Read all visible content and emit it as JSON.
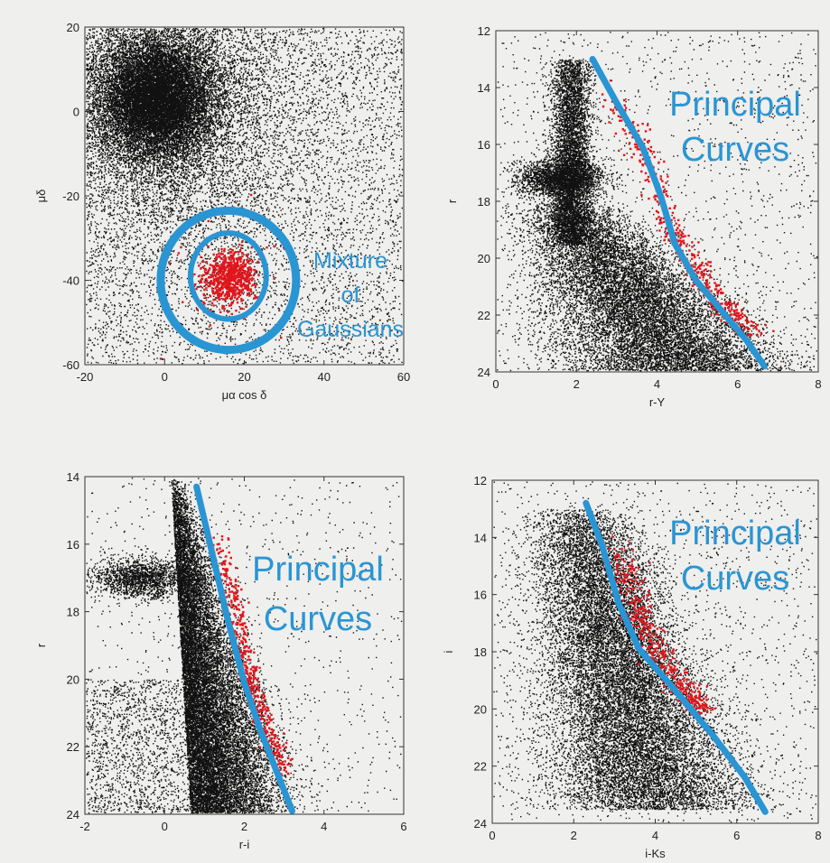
{
  "colors": {
    "background": "#efefed",
    "stars": "#111111",
    "members": "#e0161c",
    "annotation": "#2a95d3"
  },
  "chart_data": [
    {
      "type": "scatter",
      "id": "proper-motion",
      "xlabel": "μα cos δ",
      "ylabel": "μδ",
      "xlim": [
        -20,
        60
      ],
      "ylim": [
        -60,
        20
      ],
      "xticks": [
        "-20",
        "0",
        "20",
        "40",
        "60"
      ],
      "yticks": [
        "20",
        "0",
        "-20",
        "-40",
        "-60"
      ],
      "y_inverted": false,
      "grid": false,
      "field_population": {
        "center": [
          -2,
          3
        ],
        "spread": [
          7,
          7
        ]
      },
      "member_population": {
        "center": [
          16,
          -39
        ],
        "spread": [
          3.2,
          3.2
        ]
      },
      "annotation": {
        "lines": [
          "Mixture",
          "of",
          "Gaussians"
        ]
      },
      "ellipses": [
        {
          "center": [
            16,
            -39
          ],
          "radius": [
            9.5,
            10.2
          ]
        },
        {
          "center": [
            16,
            -40
          ],
          "radius": [
            17,
            16.5
          ]
        }
      ]
    },
    {
      "type": "scatter",
      "id": "cmd-r-Y",
      "xlabel": "r-Y",
      "ylabel": "r",
      "xlim": [
        -1,
        8
      ],
      "ylim": [
        12,
        24
      ],
      "xticks": [
        "0",
        "2",
        "4",
        "6",
        "8"
      ],
      "yticks": [
        "12",
        "14",
        "16",
        "18",
        "20",
        "22",
        "24"
      ],
      "y_inverted": true,
      "grid": false,
      "annotation": {
        "lines": [
          "Principal",
          "Curves"
        ]
      },
      "principal_curve": {
        "x": [
          1.7,
          2.4,
          3.1,
          3.6,
          4.0,
          4.6,
          5.4,
          6.0,
          6.5
        ],
        "y": [
          13.0,
          14.6,
          16.1,
          17.8,
          19.5,
          20.8,
          22.0,
          22.9,
          23.8
        ]
      },
      "members_curve": {
        "x": [
          2.0,
          2.7,
          3.2,
          3.7,
          4.1,
          4.7,
          5.5,
          6.1
        ],
        "y": [
          14.0,
          15.3,
          16.6,
          18.2,
          19.5,
          20.6,
          21.8,
          22.7
        ],
        "spread": [
          0.2,
          0.35
        ]
      }
    },
    {
      "type": "scatter",
      "id": "cmd-r-i",
      "xlabel": "r-i",
      "ylabel": "r",
      "xlim": [
        -2,
        6
      ],
      "ylim": [
        14,
        24
      ],
      "xticks": [
        "-2",
        "0",
        "2",
        "4",
        "6"
      ],
      "yticks": [
        "14",
        "16",
        "18",
        "20",
        "22",
        "24"
      ],
      "y_inverted": true,
      "grid": false,
      "annotation": {
        "lines": [
          "Principal",
          "Curves"
        ]
      },
      "principal_curve": {
        "x": [
          0.8,
          1.2,
          1.6,
          2.0,
          2.4,
          2.8,
          3.2
        ],
        "y": [
          14.3,
          16.3,
          18.3,
          20.1,
          21.5,
          22.7,
          23.9
        ]
      },
      "members_curve": {
        "x": [
          1.3,
          1.6,
          1.8,
          2.0,
          2.3,
          2.6,
          3.0
        ],
        "y": [
          15.8,
          17.0,
          18.2,
          19.3,
          20.5,
          21.6,
          22.6
        ],
        "spread": [
          0.12,
          0.3
        ]
      }
    },
    {
      "type": "scatter",
      "id": "cmd-i-Ks",
      "xlabel": "i-Ks",
      "ylabel": "i",
      "xlim": [
        0,
        8
      ],
      "ylim": [
        12,
        24
      ],
      "xticks": [
        "0",
        "2",
        "4",
        "6",
        "8"
      ],
      "yticks": [
        "12",
        "14",
        "16",
        "18",
        "20",
        "22",
        "24"
      ],
      "y_inverted": true,
      "grid": false,
      "annotation": {
        "lines": [
          "Principal",
          "Curves"
        ]
      },
      "principal_curve": {
        "x": [
          2.3,
          2.7,
          3.1,
          3.6,
          4.4,
          5.4,
          6.2,
          6.7
        ],
        "y": [
          12.8,
          14.3,
          16.3,
          17.9,
          19.2,
          20.9,
          22.4,
          23.6
        ]
      },
      "members_curve": {
        "x": [
          2.9,
          3.2,
          3.5,
          3.7,
          4.1,
          4.6,
          5.2
        ],
        "y": [
          14.0,
          15.0,
          16.0,
          17.0,
          18.2,
          19.2,
          20.0
        ],
        "spread": [
          0.2,
          0.3
        ]
      }
    }
  ]
}
